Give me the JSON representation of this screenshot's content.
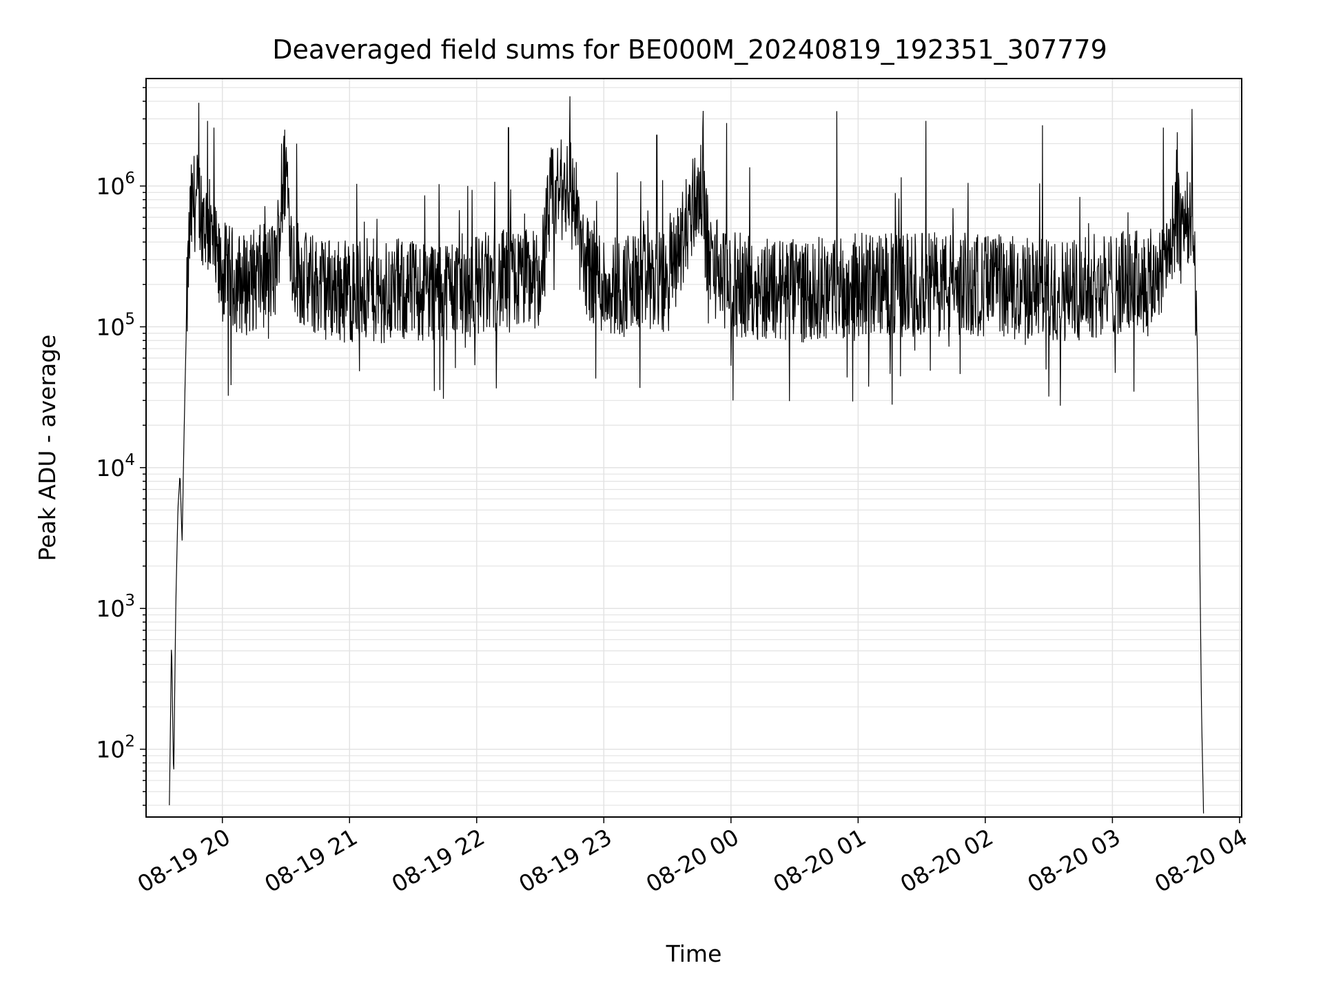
{
  "chart_data": {
    "type": "line",
    "title": "Deaveraged field sums for BE000M_20240819_192351_307779",
    "xlabel": "Time",
    "ylabel": "Peak ADU - average",
    "yscale": "log",
    "ylim": [
      33,
      5800000
    ],
    "xlim": [
      "2024-08-19 19:24",
      "2024-08-20 04:01"
    ],
    "grid": true,
    "x_ticks": [
      {
        "value": "2024-08-19 20:00",
        "label": "08-19 20"
      },
      {
        "value": "2024-08-19 21:00",
        "label": "08-19 21"
      },
      {
        "value": "2024-08-19 22:00",
        "label": "08-19 22"
      },
      {
        "value": "2024-08-19 23:00",
        "label": "08-19 23"
      },
      {
        "value": "2024-08-20 00:00",
        "label": "08-20 00"
      },
      {
        "value": "2024-08-20 01:00",
        "label": "08-20 01"
      },
      {
        "value": "2024-08-20 02:00",
        "label": "08-20 02"
      },
      {
        "value": "2024-08-20 03:00",
        "label": "08-20 03"
      },
      {
        "value": "2024-08-20 04:00",
        "label": "08-20 04"
      }
    ],
    "y_ticks": [
      {
        "value": 100,
        "base": "10",
        "exp": "2"
      },
      {
        "value": 1000,
        "base": "10",
        "exp": "3"
      },
      {
        "value": 10000,
        "base": "10",
        "exp": "4"
      },
      {
        "value": 100000,
        "base": "10",
        "exp": "5"
      },
      {
        "value": 1000000,
        "base": "10",
        "exp": "6"
      }
    ],
    "series_color": "#000000",
    "series": [
      {
        "x": [
          "2024-08-19 19:35",
          "2024-08-19 19:36",
          "2024-08-19 19:37",
          "2024-08-19 19:38",
          "2024-08-19 19:39",
          "2024-08-19 19:40",
          "2024-08-19 19:41",
          "2024-08-19 19:42",
          "2024-08-19 19:43",
          "2024-08-19 19:44",
          "2024-08-19 19:45",
          "2024-08-19 19:47",
          "2024-08-19 19:50",
          "2024-08-19 19:55",
          "2024-08-19 19:58",
          "2024-08-19 20:10",
          "2024-08-19 20:25",
          "2024-08-19 20:30",
          "2024-08-19 20:33",
          "2024-08-19 20:40",
          "2024-08-19 21:00",
          "2024-08-19 21:30",
          "2024-08-19 22:00",
          "2024-08-19 22:30",
          "2024-08-19 22:35",
          "2024-08-19 22:45",
          "2024-08-19 22:50",
          "2024-08-19 23:00",
          "2024-08-19 23:30",
          "2024-08-19 23:45",
          "2024-08-19 23:50",
          "2024-08-20 00:00",
          "2024-08-20 00:30",
          "2024-08-20 01:00",
          "2024-08-20 01:30",
          "2024-08-20 02:00",
          "2024-08-20 02:30",
          "2024-08-20 03:00",
          "2024-08-20 03:20",
          "2024-08-20 03:30",
          "2024-08-20 03:35",
          "2024-08-20 03:38",
          "2024-08-20 03:40",
          "2024-08-20 03:41",
          "2024-08-20 03:42",
          "2024-08-20 03:43"
        ],
        "y": [
          40,
          600,
          60,
          1000,
          5000,
          9000,
          3000,
          20000,
          100000,
          300000,
          600000,
          800000,
          700000,
          400000,
          250000,
          200000,
          250000,
          1500000,
          300000,
          200000,
          180000,
          180000,
          200000,
          220000,
          800000,
          1100000,
          300000,
          200000,
          200000,
          1000000,
          300000,
          200000,
          180000,
          200000,
          200000,
          200000,
          180000,
          200000,
          220000,
          500000,
          700000,
          600000,
          80000,
          5000,
          200,
          35
        ],
        "spikes": [
          {
            "x": "2024-08-19 19:53",
            "y": 2900000
          },
          {
            "x": "2024-08-19 19:56",
            "y": 2600000
          },
          {
            "x": "2024-08-19 20:28",
            "y": 2000000
          },
          {
            "x": "2024-08-19 20:35",
            "y": 2000000
          },
          {
            "x": "2024-08-19 22:15",
            "y": 2600000
          },
          {
            "x": "2024-08-19 23:25",
            "y": 2300000
          },
          {
            "x": "2024-08-19 23:58",
            "y": 2800000
          },
          {
            "x": "2024-08-20 00:50",
            "y": 3400000
          },
          {
            "x": "2024-08-20 01:32",
            "y": 2900000
          },
          {
            "x": "2024-08-20 02:27",
            "y": 2700000
          },
          {
            "x": "2024-08-20 03:24",
            "y": 2600000
          },
          {
            "x": "2024-08-19 21:40",
            "y": 35000
          },
          {
            "x": "2024-08-20 00:01",
            "y": 30000
          },
          {
            "x": "2024-08-20 01:16",
            "y": 28000
          },
          {
            "x": "2024-08-20 02:30",
            "y": 32000
          }
        ]
      }
    ]
  }
}
